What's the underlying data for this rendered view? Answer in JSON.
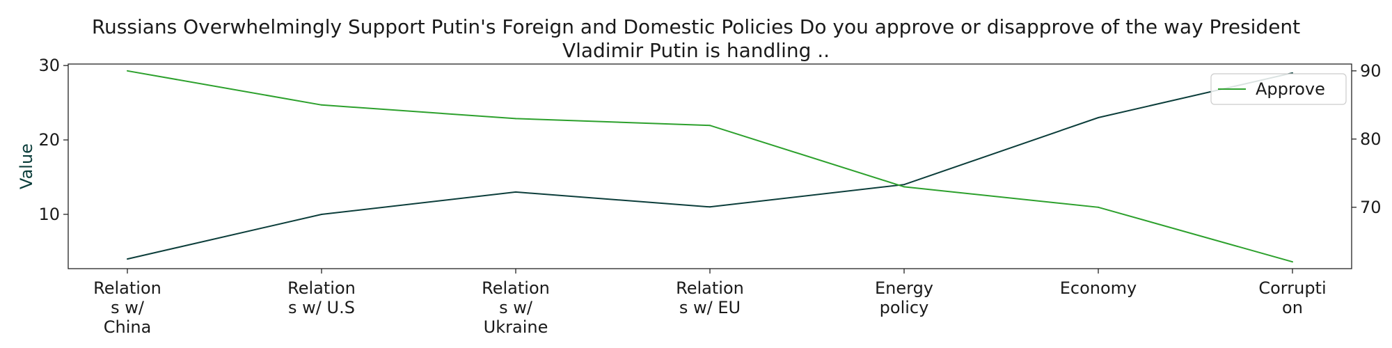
{
  "chart_data": {
    "type": "line",
    "title_lines": [
      "Russians Overwhelmingly Support Putin's Foreign and Domestic Policies Do you approve or disapprove of the way President",
      "Vladimir Putin is handling .."
    ],
    "categories": [
      [
        "Relation",
        "s w/",
        "China"
      ],
      [
        "Relation",
        "s w/ U.S"
      ],
      [
        "Relation",
        "s w/",
        "Ukraine"
      ],
      [
        "Relation",
        "s w/ EU"
      ],
      [
        "Energy",
        "policy"
      ],
      [
        "Economy"
      ],
      [
        "Corrupti",
        "on"
      ]
    ],
    "ylabel": "Value",
    "y_left_lim": [
      2.7,
      30.2
    ],
    "y_left_ticks": [
      "10",
      "20",
      "30"
    ],
    "y_left_tick_values": [
      10,
      20,
      30
    ],
    "y_right_lim": [
      61,
      91
    ],
    "y_right_ticks": [
      "70",
      "80",
      "90"
    ],
    "y_right_tick_values": [
      70,
      80,
      90
    ],
    "grid": false,
    "legend_position": "top-right",
    "series": [
      {
        "name": "",
        "axis": "left",
        "color": "#0b3d3a",
        "values": [
          4,
          10,
          13,
          11,
          14,
          23,
          29
        ]
      },
      {
        "name": "Approve",
        "axis": "right",
        "color": "#2ca02c",
        "values": [
          90,
          85,
          83,
          82,
          73,
          70,
          62
        ]
      }
    ],
    "ylabel_color": "#0b3d3a"
  }
}
